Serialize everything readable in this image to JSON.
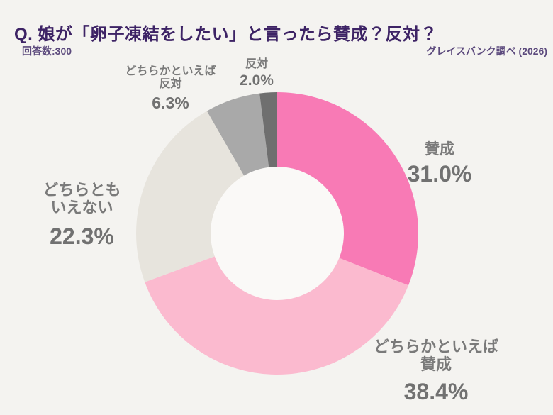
{
  "page": {
    "title": "Q. 娘が「卵子凍結をしたい」と言ったら賛成？反対？",
    "respondents_label": "回答数:300",
    "source_label": "グレイスバンク調べ (2026)"
  },
  "colors": {
    "background": "#F4F3F0",
    "title_text": "#3D2365",
    "meta_text": "#5C4A7D",
    "label_text": "#7A7A7A",
    "value_text": "#717171",
    "donut_hole": "#FAF9F7"
  },
  "chart_data": {
    "type": "pie",
    "subtype": "donut",
    "title": "娘が「卵子凍結をしたい」と言ったら賛成？反対？",
    "sample_size": 300,
    "start_angle": "top",
    "direction": "clockwise",
    "hole_ratio": 0.47,
    "legend_position": "outside-callouts",
    "categories": [
      "賛成",
      "どちらかといえば賛成",
      "どちらともいえない",
      "どちらかといえば反対",
      "反対"
    ],
    "values": [
      31.0,
      38.4,
      22.3,
      6.3,
      2.0
    ],
    "segments": [
      {
        "label": "賛成",
        "value": 31.0,
        "pct_label": "31.0%",
        "color": "#F87AB5"
      },
      {
        "label": "どちらかといえば\n賛成",
        "value": 38.4,
        "pct_label": "38.4%",
        "color": "#FBBACF"
      },
      {
        "label": "どちらとも\nいえない",
        "value": 22.3,
        "pct_label": "22.3%",
        "color": "#E7E4DD"
      },
      {
        "label": "どちらかといえば\n反対",
        "value": 6.3,
        "pct_label": "6.3%",
        "color": "#A9A9A9"
      },
      {
        "label": "反対",
        "value": 2.0,
        "pct_label": "2.0%",
        "color": "#6F6F6F"
      }
    ]
  }
}
